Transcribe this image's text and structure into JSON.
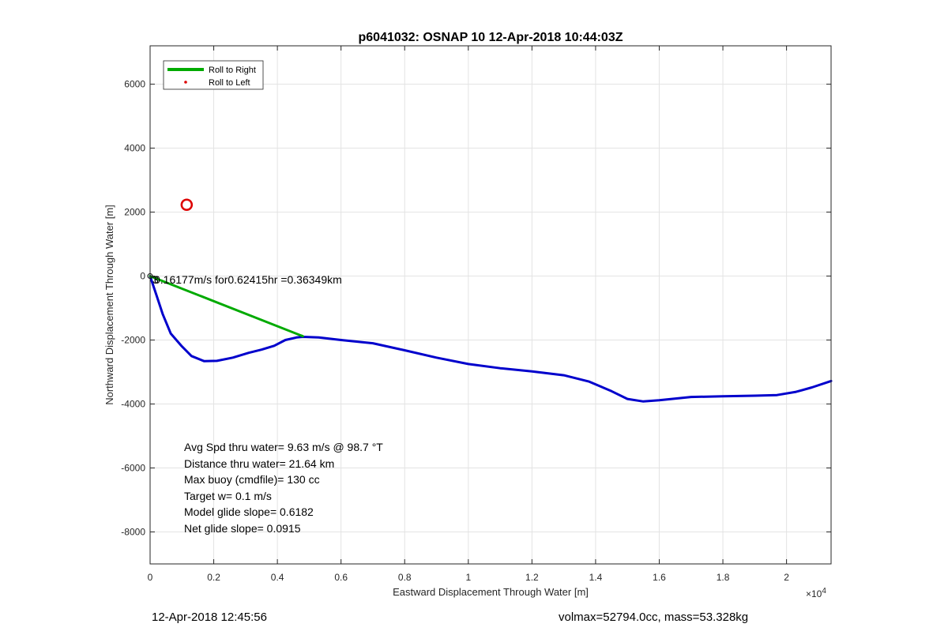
{
  "figure": {
    "footer_left": "12-Apr-2018 12:45:56",
    "footer_right": "volmax=52794.0cc, mass=53.328kg"
  },
  "chart_data": {
    "type": "line",
    "title": "p6041032: OSNAP 10 12-Apr-2018 10:44:03Z",
    "xlabel": "Eastward Displacement Through Water [m]",
    "ylabel": "Northward Displacement Through Water [m]",
    "x_exponent_label": "×10",
    "x_exponent": "4",
    "xlim": [
      0,
      21400
    ],
    "ylim": [
      -9000,
      7200
    ],
    "x_ticks": [
      0,
      2000,
      4000,
      6000,
      8000,
      10000,
      12000,
      14000,
      16000,
      18000,
      20000
    ],
    "x_tick_labels": [
      "0",
      "0.2",
      "0.4",
      "0.6",
      "0.8",
      "1",
      "1.2",
      "1.4",
      "1.6",
      "1.8",
      "2"
    ],
    "y_ticks": [
      -8000,
      -6000,
      -4000,
      -2000,
      0,
      2000,
      4000,
      6000
    ],
    "y_tick_labels": [
      "-8000",
      "-6000",
      "-4000",
      "-2000",
      "0",
      "2000",
      "4000",
      "6000"
    ],
    "grid": true,
    "legend_position": "top-left",
    "legend": [
      {
        "label": "Roll to Right",
        "color": "#00aa00",
        "marker": "line"
      },
      {
        "label": "Roll to Left",
        "color": "#dd0000",
        "marker": "dot"
      }
    ],
    "series": [
      {
        "name": "track",
        "color": "#0000cc",
        "x": [
          0,
          200,
          400,
          650,
          1000,
          1300,
          1700,
          2100,
          2600,
          3100,
          3500,
          3900,
          4250,
          4600,
          4800,
          5300,
          6000,
          7000,
          8000,
          9000,
          10000,
          11000,
          12000,
          13000,
          13800,
          14500,
          15000,
          15500,
          16000,
          17000,
          18000,
          19000,
          19700,
          20300,
          20800,
          21400
        ],
        "y": [
          0,
          -600,
          -1200,
          -1800,
          -2200,
          -2500,
          -2660,
          -2650,
          -2550,
          -2400,
          -2300,
          -2180,
          -2000,
          -1920,
          -1900,
          -1920,
          -2000,
          -2100,
          -2320,
          -2550,
          -2750,
          -2880,
          -2980,
          -3100,
          -3300,
          -3600,
          -3840,
          -3920,
          -3880,
          -3780,
          -3760,
          -3740,
          -3720,
          -3620,
          -3480,
          -3280
        ]
      },
      {
        "name": "Roll to Right",
        "color": "#00aa00",
        "x": [
          0,
          4800
        ],
        "y": [
          0,
          -1880
        ]
      }
    ],
    "markers": [
      {
        "name": "Roll to Left",
        "type": "circle",
        "color": "#dd0000",
        "x": 1150,
        "y": 2230
      }
    ],
    "annotations": {
      "current_label": "0.16177m/s for0.62415hr =0.36349km",
      "overlap_label": "3",
      "stats": [
        "Avg Spd thru water=  9.63 m/s @  98.7 °T",
        "Distance thru water= 21.64 km",
        "Max buoy (cmdfile)= 130 cc",
        "Target w= 0.1 m/s",
        "Model glide slope= 0.6182",
        "Net glide slope= 0.0915"
      ]
    }
  }
}
